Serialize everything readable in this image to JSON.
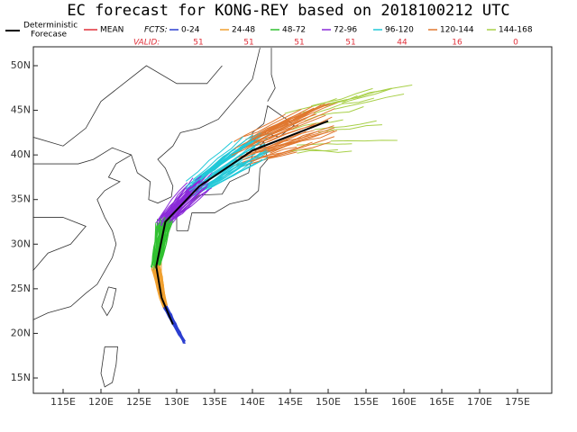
{
  "title": "EC forecast for KONG-REY based on 2018100212 UTC",
  "legend": {
    "deterministic": [
      "Deterministic",
      "Forecase"
    ],
    "mean": {
      "label": "MEAN",
      "color": "#e0303a"
    },
    "fcts_label": "FCTS:",
    "ranges": [
      {
        "label": "0-24",
        "color": "#2c3fd0"
      },
      {
        "label": "24-48",
        "color": "#f0a030"
      },
      {
        "label": "48-72",
        "color": "#30c030"
      },
      {
        "label": "72-96",
        "color": "#8a2ad8"
      },
      {
        "label": "96-120",
        "color": "#20c8d8"
      },
      {
        "label": "120-144",
        "color": "#e07830"
      },
      {
        "label": "144-168",
        "color": "#a8d048"
      }
    ],
    "valid_label": "VALID:",
    "valid": [
      "51",
      "51",
      "51",
      "51",
      "44",
      "16",
      "0"
    ]
  },
  "axes": {
    "lon": [
      "115E",
      "120E",
      "125E",
      "130E",
      "135E",
      "140E",
      "145E",
      "150E",
      "155E",
      "160E",
      "165E",
      "170E",
      "175E"
    ],
    "lat": [
      "50N",
      "45N",
      "40N",
      "35N",
      "30N",
      "25N",
      "20N",
      "15N"
    ]
  }
}
